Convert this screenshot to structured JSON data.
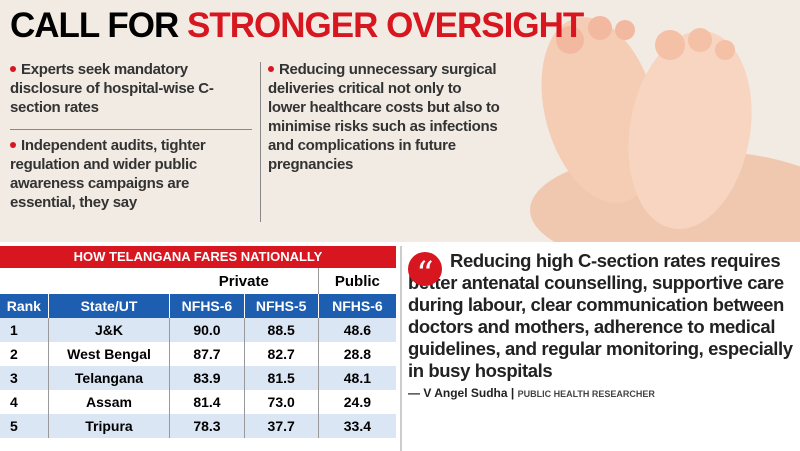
{
  "header": {
    "title_black": "CALL FOR",
    "title_red": "STRONGER OVERSIGHT"
  },
  "bullets": [
    "Experts seek mandatory disclosure of hospital-wise C-section rates",
    "Independent audits, tighter regulation and wider public awareness campaigns are essential, they say",
    "Reducing unnecessary surgical deliveries critical not only to lower healthcare costs but also to minimise risks such as infections and complications in future pregnancies"
  ],
  "table": {
    "title": "HOW TELANGANA FARES NATIONALLY",
    "groups": [
      "Private",
      "Public"
    ],
    "columns": [
      "Rank",
      "State/UT",
      "NFHS-6",
      "NFHS-5",
      "NFHS-6"
    ],
    "rows": [
      [
        "1",
        "J&K",
        "90.0",
        "88.5",
        "48.6"
      ],
      [
        "2",
        "West Bengal",
        "87.7",
        "82.7",
        "28.8"
      ],
      [
        "3",
        "Telangana",
        "83.9",
        "81.5",
        "48.1"
      ],
      [
        "4",
        "Assam",
        "81.4",
        "73.0",
        "24.9"
      ],
      [
        "5",
        "Tripura",
        "78.3",
        "37.7",
        "33.4"
      ]
    ]
  },
  "quote": {
    "text": "Reducing high C-section rates requires better antenatal counselling, supportive care during labour, clear communication between doctors and mothers, adherence to medical guidelines, and regular monitoring, especially in busy hospitals",
    "author": "— V Angel Sudha",
    "role": "PUBLIC HEALTH RESEARCHER"
  }
}
